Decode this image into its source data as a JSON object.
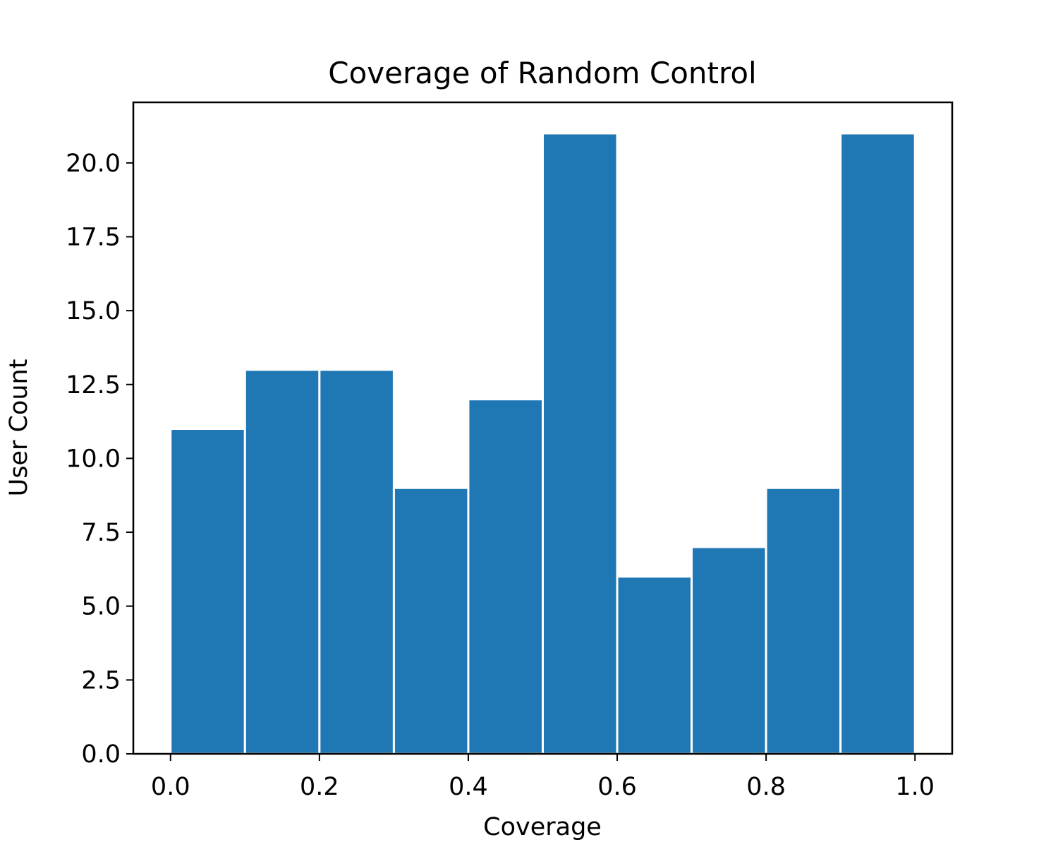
{
  "chart_data": {
    "type": "bar",
    "title": "Coverage of Random Control",
    "xlabel": "Coverage",
    "ylabel": "User Count",
    "bin_edges": [
      0.0,
      0.1,
      0.2,
      0.3,
      0.4,
      0.5,
      0.6,
      0.7,
      0.8,
      0.9,
      1.0
    ],
    "values": [
      11,
      13,
      13,
      9,
      12,
      21,
      6,
      7,
      9,
      21
    ],
    "xlim": [
      -0.05,
      1.05
    ],
    "ylim": [
      0,
      22.05
    ],
    "xticks": [
      0.0,
      0.2,
      0.4,
      0.6,
      0.8,
      1.0
    ],
    "xtick_labels": [
      "0.0",
      "0.2",
      "0.4",
      "0.6",
      "0.8",
      "1.0"
    ],
    "yticks": [
      0.0,
      2.5,
      5.0,
      7.5,
      10.0,
      12.5,
      15.0,
      17.5,
      20.0
    ],
    "ytick_labels": [
      "0.0",
      "2.5",
      "5.0",
      "7.5",
      "10.0",
      "12.5",
      "15.0",
      "17.5",
      "20.0"
    ],
    "grid": false,
    "legend": "none",
    "bar_color": "#1f77b4",
    "edge_color": "#ffffff"
  }
}
